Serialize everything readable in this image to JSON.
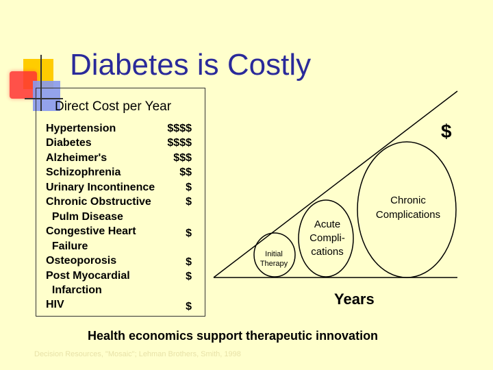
{
  "slide": {
    "title": "Diabetes is Costly",
    "subtitle": "Direct Cost per Year",
    "conditions": [
      {
        "label": "Hypertension",
        "cost": "$$$$"
      },
      {
        "label": "Diabetes",
        "cost": "$$$$"
      },
      {
        "label": "Alzheimer's",
        "cost": "$$$"
      },
      {
        "label": "Schizophrenia",
        "cost": "$$"
      },
      {
        "label": "Urinary Incontinence",
        "cost": "$"
      },
      {
        "label": "Chronic Obstructive",
        "cost": "$"
      },
      {
        "label": "  Pulm Disease",
        "cost": ""
      },
      {
        "label": "Congestive Heart",
        "cost": "$"
      },
      {
        "label": "  Failure",
        "cost": ""
      },
      {
        "label": "Osteoporosis",
        "cost": "$"
      },
      {
        "label": "Post Myocardial",
        "cost": "$"
      },
      {
        "label": "  Infarction",
        "cost": ""
      },
      {
        "label": "HIV",
        "cost": "$"
      }
    ],
    "diagram": {
      "dollar_label": "$",
      "chronic_label": [
        "Chronic",
        "Complications"
      ],
      "acute_label": [
        "Acute",
        "Compli-",
        "cations"
      ],
      "initial_label": [
        "Initial",
        "Therapy"
      ],
      "x_axis_label": "Years"
    },
    "conclusion": "Health economics support therapeutic innovation",
    "source": "Decision Resources, \"Mosaic\"; Lehman Brothers, Smith, 1998"
  },
  "colors": {
    "background": "#ffffcc",
    "title": "#2a2a9a",
    "accent_yellow": "#ffcc00",
    "accent_red": "#ff3333",
    "accent_blue": "#8899ee"
  }
}
